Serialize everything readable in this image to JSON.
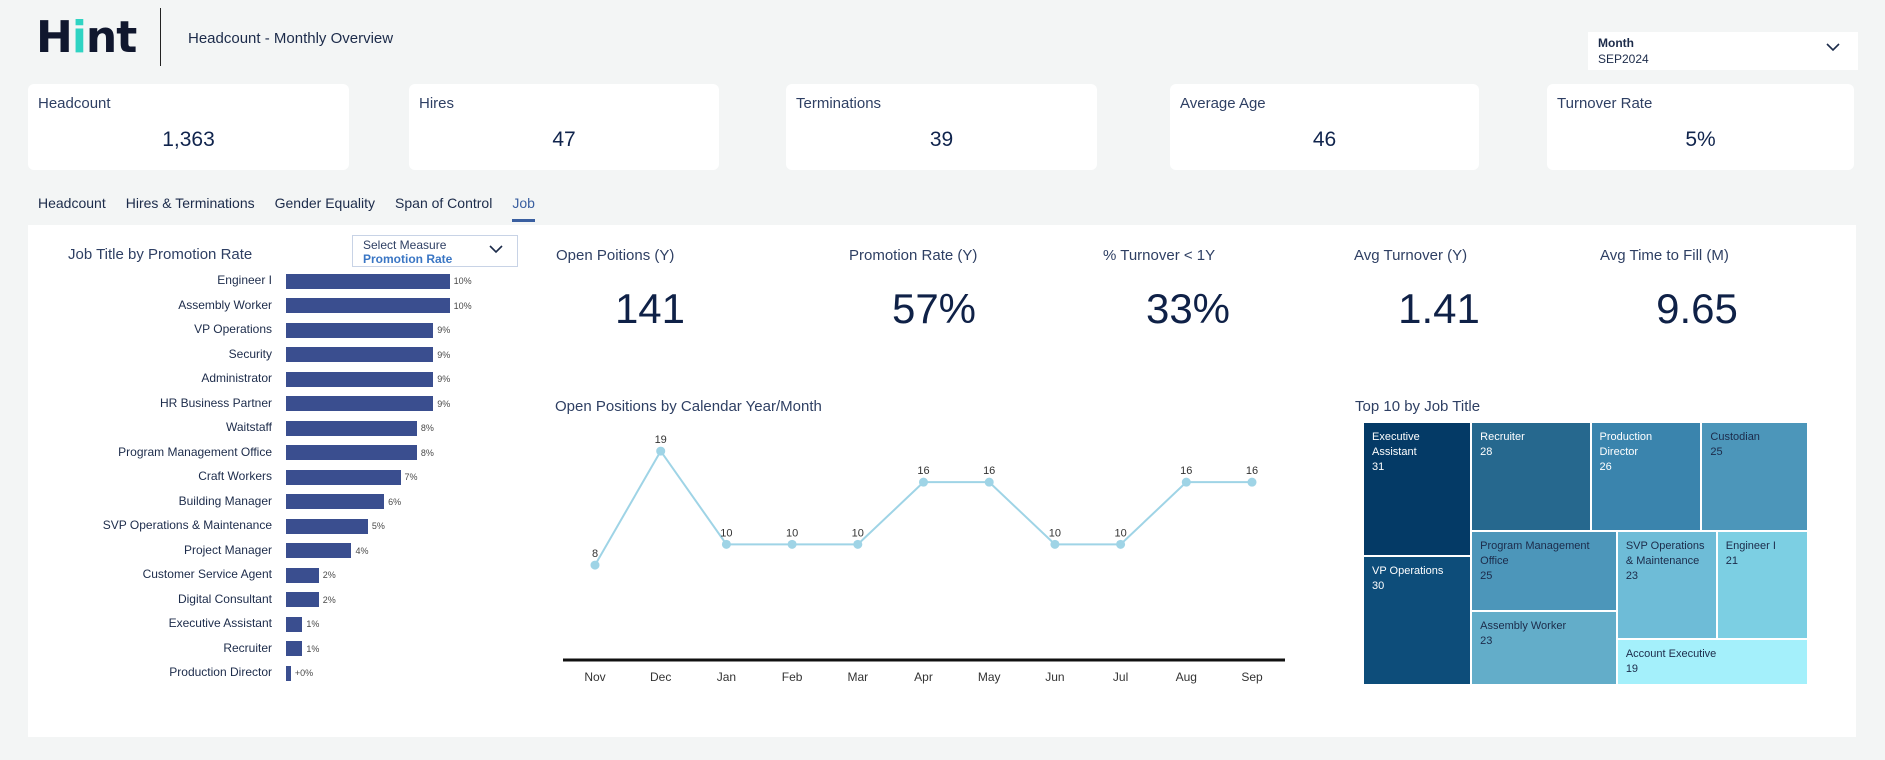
{
  "header": {
    "logo_text_pre": "H",
    "logo_text_i": "i",
    "logo_text_post": "nt",
    "title": "Headcount - Monthly Overview",
    "month_label": "Month",
    "month_value": "SEP2024"
  },
  "kpis": [
    {
      "title": "Headcount",
      "value": "1,363"
    },
    {
      "title": "Hires",
      "value": "47"
    },
    {
      "title": "Terminations",
      "value": "39"
    },
    {
      "title": "Average Age",
      "value": "46"
    },
    {
      "title": "Turnover Rate",
      "value": "5%"
    }
  ],
  "tabs": [
    "Headcount",
    "Hires & Terminations",
    "Gender Equality",
    "Span of Control",
    "Job"
  ],
  "active_tab": "Job",
  "measure_select": {
    "label": "Select Measure",
    "value": "Promotion Rate"
  },
  "job_kpis": [
    {
      "title": "Open Poitions (Y)",
      "value": "141"
    },
    {
      "title": "Promotion Rate (Y)",
      "value": "57%"
    },
    {
      "title": "% Turnover < 1Y",
      "value": "33%"
    },
    {
      "title": "Avg Turnover (Y)",
      "value": "1.41"
    },
    {
      "title": "Avg Time to Fill (M)",
      "value": "9.65"
    }
  ],
  "colors": {
    "bar": "#3a4e8f",
    "line": "#9fd4e6",
    "accent": "#2fd4c3"
  },
  "chart_data": [
    {
      "type": "bar",
      "orientation": "horizontal",
      "title": "Job Title by Promotion Rate",
      "categories": [
        "Engineer I",
        "Assembly Worker",
        "VP Operations",
        "Security",
        "Administrator",
        "HR Business Partner",
        "Waitstaff",
        "Program Management Office",
        "Craft Workers",
        "Building Manager",
        "SVP Operations & Maintenance",
        "Project Manager",
        "Customer Service Agent",
        "Digital Consultant",
        "Executive Assistant",
        "Recruiter",
        "Production Director"
      ],
      "values": [
        10,
        10,
        9,
        9,
        9,
        9,
        8,
        8,
        7,
        6,
        5,
        4,
        2,
        2,
        1,
        1,
        0.3
      ],
      "value_labels": [
        "10%",
        "10%",
        "9%",
        "9%",
        "9%",
        "9%",
        "8%",
        "8%",
        "7%",
        "6%",
        "5%",
        "4%",
        "2%",
        "2%",
        "1%",
        "1%",
        "+0%"
      ],
      "xlim": [
        0,
        11
      ]
    },
    {
      "type": "line",
      "title": "Open Positions by Calendar Year/Month",
      "x": [
        "Nov",
        "Dec",
        "Jan",
        "Feb",
        "Mar",
        "Apr",
        "May",
        "Jun",
        "Jul",
        "Aug",
        "Sep"
      ],
      "values": [
        8,
        19,
        10,
        10,
        10,
        16,
        16,
        10,
        10,
        16,
        16
      ],
      "ylim": [
        0,
        22
      ]
    },
    {
      "type": "treemap",
      "title": "Top 10 by Job Title",
      "items": [
        {
          "name": "Executive Assistant",
          "value": 31
        },
        {
          "name": "VP Operations",
          "value": 30
        },
        {
          "name": "Recruiter",
          "value": 28
        },
        {
          "name": "Production Director",
          "value": 26
        },
        {
          "name": "Custodian",
          "value": 25
        },
        {
          "name": "Program Management Office",
          "value": 25
        },
        {
          "name": "Assembly Worker",
          "value": 23
        },
        {
          "name": "SVP Operations & Maintenance",
          "value": 23
        },
        {
          "name": "Engineer I",
          "value": 21
        },
        {
          "name": "Account Executive",
          "value": 19
        }
      ]
    }
  ]
}
